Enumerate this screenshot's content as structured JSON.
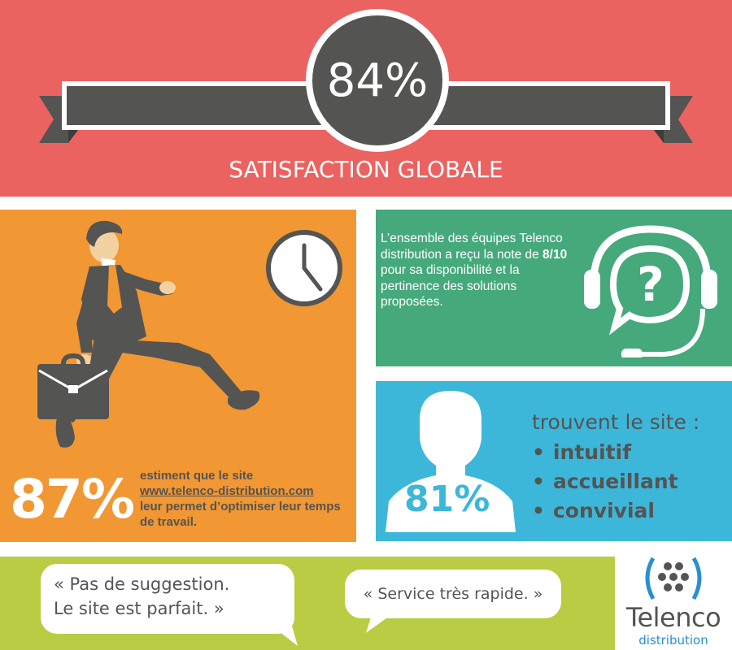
{
  "headline": {
    "value": "84%",
    "label": "SATISFACTION GLOBALE"
  },
  "website_panel": {
    "value": "87%",
    "text_before": "estiment que le site",
    "link": "www.telenco-distribution.com",
    "text_after": "leur permet d’optimiser leur temps de travail."
  },
  "team_panel": {
    "text_1": "L’ensemble des équipes Telenco distribution a reçu la note de ",
    "rating": "8/10",
    "text_2": " pour sa disponibilité et la pertinence des solutions proposées."
  },
  "site_panel": {
    "value": "81%",
    "heading": "trouvent le site :",
    "qualities": [
      "intuitif",
      "accueillant",
      "convivial"
    ]
  },
  "quotes": [
    {
      "line1": "« Pas de suggestion.",
      "line2": "Le site est parfait. »"
    },
    {
      "text": "« Service très rapide. »"
    }
  ],
  "logo": {
    "name": "Telenco",
    "sub": "distribution"
  },
  "colors": {
    "red": "#ea6361",
    "orange": "#f19733",
    "green": "#45a97c",
    "blue": "#3cb7da",
    "lime": "#b9cc43",
    "dark_gray": "#545453",
    "logo_blue": "#2a8fd0"
  },
  "icons": [
    "ribbon-banner",
    "businessman-running-icon",
    "briefcase-icon",
    "clock-icon",
    "headset-question-icon",
    "person-silhouette-icon",
    "speech-bubble-icon",
    "telenco-logo-icon"
  ]
}
